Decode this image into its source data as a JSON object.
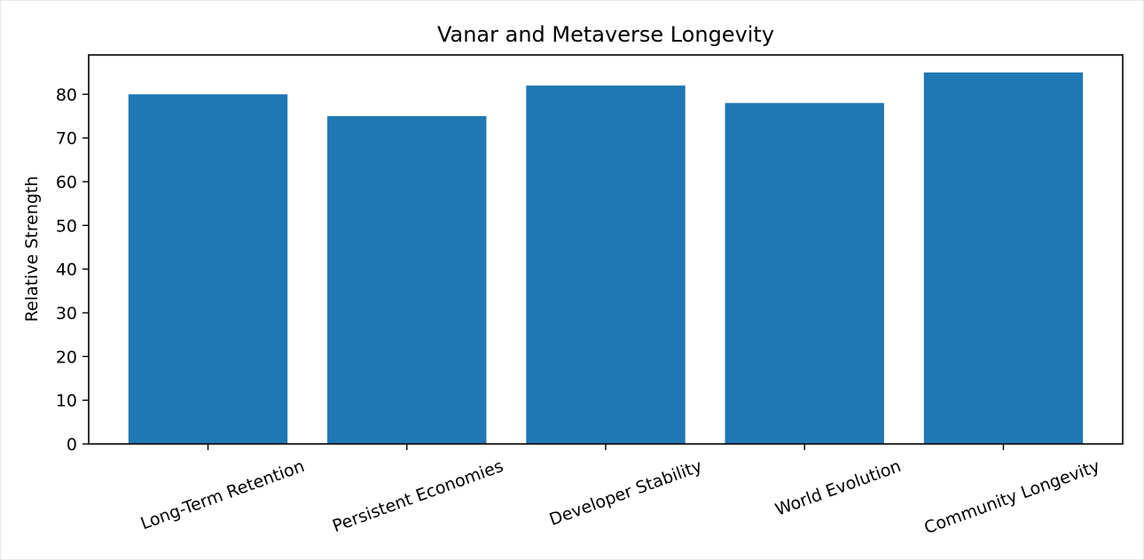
{
  "chart_data": {
    "type": "bar",
    "title": "Vanar and Metaverse Longevity",
    "xlabel": "",
    "ylabel": "Relative Strength",
    "categories": [
      "Long-Term Retention",
      "Persistent Economies",
      "Developer Stability",
      "World Evolution",
      "Community Longevity"
    ],
    "values": [
      80,
      75,
      82,
      78,
      85
    ],
    "ylim": [
      0,
      89
    ],
    "yticks": [
      0,
      10,
      20,
      30,
      40,
      50,
      60,
      70,
      80
    ],
    "bar_color": "#1f77b4",
    "grid": false,
    "legend": "none"
  }
}
